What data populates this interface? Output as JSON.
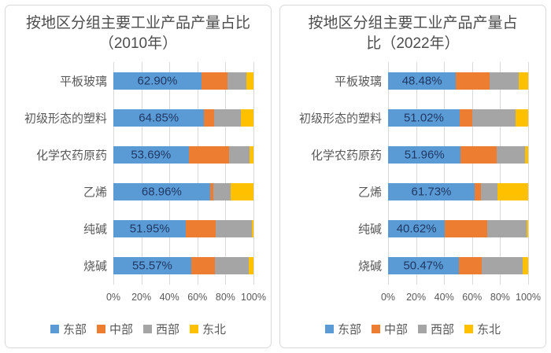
{
  "series_colors": [
    "#5B9BD5",
    "#ED7D31",
    "#A5A5A5",
    "#FFC000"
  ],
  "colors": {
    "east": "#5B9BD5",
    "central": "#ED7D31",
    "west": "#A5A5A5",
    "northeast": "#FFC000",
    "gridline": "#D9D9D9",
    "panel_border": "#D9D9D9",
    "title_text": "#4D4D4D",
    "axis_text": "#595959",
    "data_label_text": "#203864"
  },
  "legend": {
    "position": "bottom",
    "items": [
      {
        "label": "东部",
        "color": "#5B9BD5"
      },
      {
        "label": "中部",
        "color": "#ED7D31"
      },
      {
        "label": "西部",
        "color": "#A5A5A5"
      },
      {
        "label": "东北",
        "color": "#FFC000"
      }
    ]
  },
  "x_axis": {
    "ticks": [
      "0%",
      "20%",
      "40%",
      "60%",
      "80%",
      "100%"
    ],
    "range": [
      0,
      100
    ],
    "grid": true
  },
  "chart_data": [
    {
      "type": "bar",
      "stacked": true,
      "orientation": "horizontal",
      "title": "按地区分组主要工业产品产量占比（2010年）",
      "title_lines": [
        "按地区分组主要工业产品产量占比",
        "（2010年）"
      ],
      "categories": [
        "平板玻璃",
        "初级形态的塑料",
        "化学农药原药",
        "乙烯",
        "纯碱",
        "烧碱"
      ],
      "series": [
        {
          "name": "东部",
          "values": [
            62.9,
            64.85,
            53.69,
            68.96,
            51.95,
            55.57
          ]
        },
        {
          "name": "中部",
          "values": [
            18.6,
            7.0,
            29.0,
            2.2,
            20.9,
            16.9
          ]
        },
        {
          "name": "西部",
          "values": [
            13.7,
            18.9,
            14.5,
            12.8,
            26.0,
            24.0
          ]
        },
        {
          "name": "东北",
          "values": [
            4.8,
            9.25,
            2.81,
            16.04,
            1.15,
            3.53
          ]
        }
      ],
      "data_labels": [
        "62.90%",
        "64.85%",
        "53.69%",
        "68.96%",
        "51.95%",
        "55.57%"
      ],
      "xlim": [
        0,
        100
      ],
      "x_ticks": [
        "0%",
        "20%",
        "40%",
        "60%",
        "80%",
        "100%"
      ],
      "legend_position": "bottom"
    },
    {
      "type": "bar",
      "stacked": true,
      "orientation": "horizontal",
      "title": "按地区分组主要工业产品产量占比（2022年）",
      "title_lines": [
        "按地区分组主要工业产品产量占",
        "比（2022年）"
      ],
      "categories": [
        "平板玻璃",
        "初级形态的塑料",
        "化学农药原药",
        "乙烯",
        "纯碱",
        "烧碱"
      ],
      "series": [
        {
          "name": "东部",
          "values": [
            48.48,
            51.02,
            51.96,
            61.73,
            40.62,
            50.47
          ]
        },
        {
          "name": "中部",
          "values": [
            24.0,
            9.0,
            25.6,
            4.5,
            30.0,
            16.3
          ]
        },
        {
          "name": "西部",
          "values": [
            20.6,
            30.9,
            20.2,
            12.0,
            28.0,
            29.3
          ]
        },
        {
          "name": "东北",
          "values": [
            6.92,
            9.08,
            2.24,
            21.77,
            1.38,
            3.93
          ]
        }
      ],
      "data_labels": [
        "48.48%",
        "51.02%",
        "51.96%",
        "61.73%",
        "40.62%",
        "50.47%"
      ],
      "xlim": [
        0,
        100
      ],
      "x_ticks": [
        "0%",
        "20%",
        "40%",
        "60%",
        "80%",
        "100%"
      ],
      "legend_position": "bottom"
    }
  ]
}
